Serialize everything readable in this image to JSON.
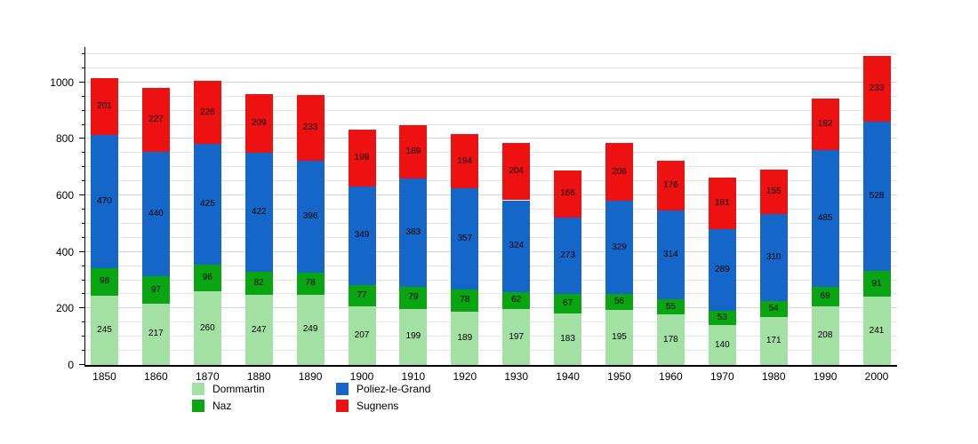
{
  "chart_data": {
    "type": "bar",
    "stacked": true,
    "title": "",
    "xlabel": "",
    "ylabel": "",
    "categories": [
      "1850",
      "1860",
      "1870",
      "1880",
      "1890",
      "1900",
      "1910",
      "1920",
      "1930",
      "1940",
      "1950",
      "1960",
      "1970",
      "1980",
      "1990",
      "2000"
    ],
    "series": [
      {
        "name": "Dommartin",
        "color": "#a3e0a3",
        "values": [
          245,
          217,
          260,
          247,
          249,
          207,
          199,
          189,
          197,
          183,
          195,
          178,
          140,
          171,
          208,
          241
        ]
      },
      {
        "name": "Naz",
        "color": "#0aa513",
        "values": [
          98,
          97,
          96,
          82,
          78,
          77,
          79,
          78,
          62,
          67,
          56,
          55,
          53,
          54,
          69,
          91
        ]
      },
      {
        "name": "Poliez-le-Grand",
        "color": "#1467c8",
        "values": [
          470,
          440,
          425,
          422,
          396,
          349,
          383,
          357,
          324,
          273,
          329,
          314,
          289,
          310,
          485,
          528
        ]
      },
      {
        "name": "Sugnens",
        "color": "#ee1111",
        "values": [
          201,
          227,
          226,
          209,
          233,
          199,
          189,
          194,
          204,
          166,
          206,
          176,
          181,
          155,
          182,
          233
        ]
      }
    ],
    "ylim": [
      0,
      1125
    ],
    "y_major_ticks": [
      0,
      200,
      400,
      600,
      800,
      1000
    ],
    "y_minor_step": 50,
    "grid": true,
    "value_labels": true,
    "legend_position": "bottom"
  }
}
